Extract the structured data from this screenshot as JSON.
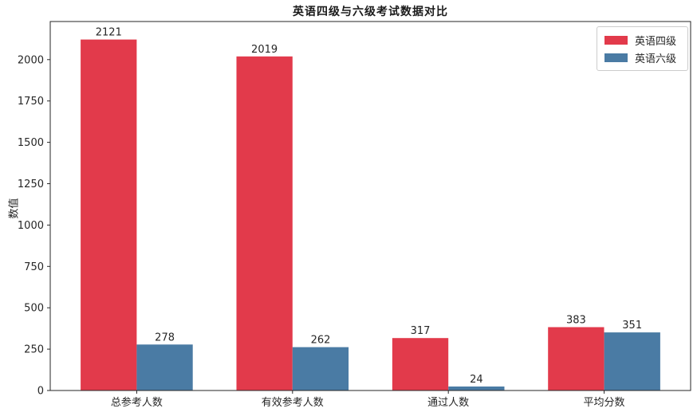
{
  "title": "英语四级与六级考试数据对比",
  "colors": {
    "cet4": "#e23a4b",
    "cet6": "#4a7ba4",
    "text": "#262626",
    "frame": "#262626",
    "legend_border": "#cccccc"
  },
  "chart_data": {
    "type": "bar",
    "title": "英语四级与六级考试数据对比",
    "xlabel": "",
    "ylabel": "数值",
    "categories": [
      "总参考人数",
      "有效参考人数",
      "通过人数",
      "平均分数"
    ],
    "series": [
      {
        "name": "英语四级",
        "color": "#e23a4b",
        "values": [
          2121,
          2019,
          317,
          383
        ]
      },
      {
        "name": "英语六级",
        "color": "#4a7ba4",
        "values": [
          278,
          262,
          24,
          351
        ]
      }
    ],
    "ylim": [
      0,
      2230
    ],
    "yticks": [
      0,
      250,
      500,
      750,
      1000,
      1250,
      1500,
      1750,
      2000
    ],
    "bar_value_labels": [
      [
        "2121",
        "2019",
        "317",
        "383"
      ],
      [
        "278",
        "262",
        "24",
        "351"
      ]
    ],
    "grid": false,
    "legend_position": "upper right"
  }
}
